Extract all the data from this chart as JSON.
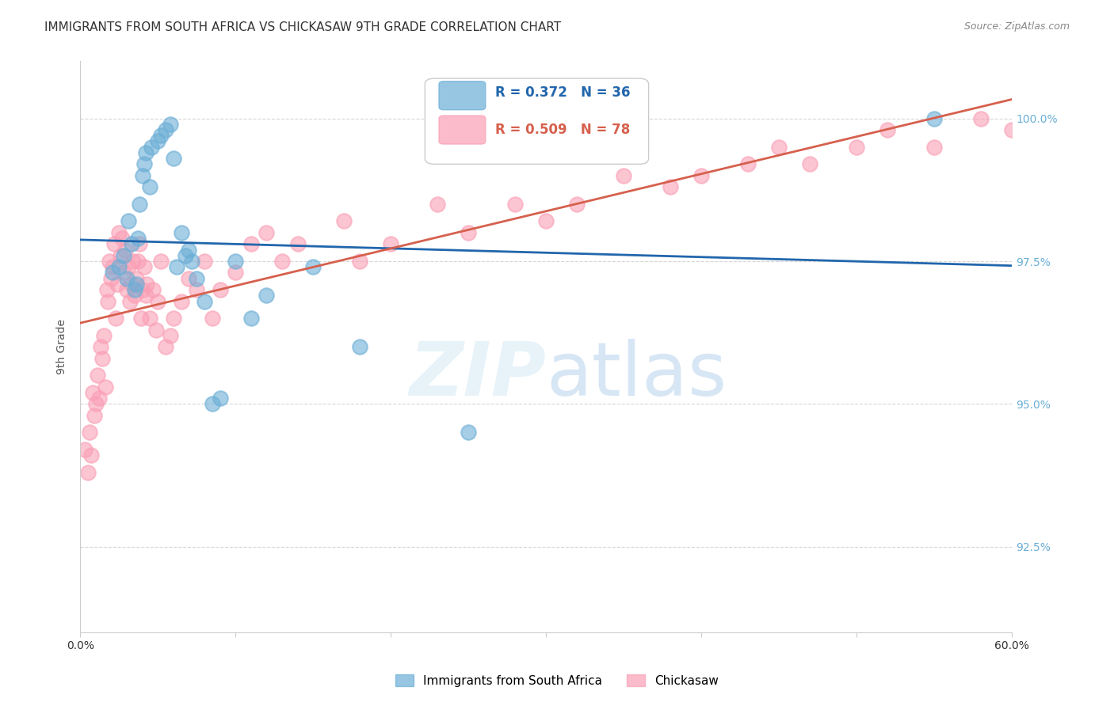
{
  "title": "IMMIGRANTS FROM SOUTH AFRICA VS CHICKASAW 9TH GRADE CORRELATION CHART",
  "source": "Source: ZipAtlas.com",
  "xlabel": "",
  "ylabel": "9th Grade",
  "x_label_bottom_left": "0.0%",
  "x_label_bottom_right": "60.0%",
  "y_tick_labels": [
    "92.5%",
    "95.0%",
    "97.5%",
    "100.0%"
  ],
  "y_tick_values": [
    92.5,
    95.0,
    97.5,
    100.0
  ],
  "xlim": [
    0.0,
    60.0
  ],
  "ylim": [
    91.0,
    101.0
  ],
  "legend_r1": "R = 0.372",
  "legend_n1": "N = 36",
  "legend_r2": "R = 0.509",
  "legend_n2": "N = 78",
  "blue_color": "#6baed6",
  "pink_color": "#fa9fb5",
  "blue_line_color": "#2166ac",
  "pink_line_color": "#d6604d",
  "right_axis_color": "#6baed6",
  "background_color": "#ffffff",
  "watermark": "ZIPatlas",
  "blue_scatter_x": [
    2.1,
    2.5,
    2.8,
    3.0,
    3.1,
    3.3,
    3.5,
    3.6,
    3.7,
    3.8,
    4.0,
    4.1,
    4.2,
    4.5,
    4.6,
    5.0,
    5.2,
    5.5,
    5.8,
    6.0,
    6.2,
    6.5,
    6.8,
    7.0,
    7.2,
    7.5,
    8.0,
    8.5,
    9.0,
    10.0,
    11.0,
    12.0,
    15.0,
    18.0,
    25.0,
    55.0
  ],
  "blue_scatter_y": [
    97.3,
    97.4,
    97.6,
    97.2,
    98.2,
    97.8,
    97.0,
    97.1,
    97.9,
    98.5,
    99.0,
    99.2,
    99.4,
    98.8,
    99.5,
    99.6,
    99.7,
    99.8,
    99.9,
    99.3,
    97.4,
    98.0,
    97.6,
    97.7,
    97.5,
    97.2,
    96.8,
    95.0,
    95.1,
    97.5,
    96.5,
    96.9,
    97.4,
    96.0,
    94.5,
    100.0
  ],
  "pink_scatter_x": [
    0.3,
    0.5,
    0.6,
    0.7,
    0.8,
    0.9,
    1.0,
    1.1,
    1.2,
    1.3,
    1.4,
    1.5,
    1.6,
    1.7,
    1.8,
    1.9,
    2.0,
    2.1,
    2.2,
    2.3,
    2.4,
    2.5,
    2.6,
    2.7,
    2.8,
    2.9,
    3.0,
    3.1,
    3.2,
    3.3,
    3.4,
    3.5,
    3.6,
    3.7,
    3.8,
    3.9,
    4.0,
    4.1,
    4.2,
    4.3,
    4.5,
    4.7,
    4.9,
    5.0,
    5.2,
    5.5,
    5.8,
    6.0,
    6.5,
    7.0,
    7.5,
    8.0,
    8.5,
    9.0,
    10.0,
    11.0,
    12.0,
    13.0,
    14.0,
    17.0,
    18.0,
    20.0,
    23.0,
    25.0,
    28.0,
    30.0,
    32.0,
    35.0,
    38.0,
    40.0,
    43.0,
    45.0,
    47.0,
    50.0,
    52.0,
    55.0,
    58.0,
    60.0
  ],
  "pink_scatter_y": [
    94.2,
    93.8,
    94.5,
    94.1,
    95.2,
    94.8,
    95.0,
    95.5,
    95.1,
    96.0,
    95.8,
    96.2,
    95.3,
    97.0,
    96.8,
    97.5,
    97.2,
    97.4,
    97.8,
    96.5,
    97.1,
    98.0,
    97.6,
    97.9,
    97.3,
    97.7,
    97.0,
    97.4,
    96.8,
    97.1,
    97.5,
    96.9,
    97.2,
    97.5,
    97.8,
    96.5,
    97.0,
    97.4,
    96.9,
    97.1,
    96.5,
    97.0,
    96.3,
    96.8,
    97.5,
    96.0,
    96.2,
    96.5,
    96.8,
    97.2,
    97.0,
    97.5,
    96.5,
    97.0,
    97.3,
    97.8,
    98.0,
    97.5,
    97.8,
    98.2,
    97.5,
    97.8,
    98.5,
    98.0,
    98.5,
    98.2,
    98.5,
    99.0,
    98.8,
    99.0,
    99.2,
    99.5,
    99.2,
    99.5,
    99.8,
    99.5,
    100.0,
    99.8
  ],
  "grid_color": "#cccccc",
  "title_fontsize": 11,
  "axis_label_fontsize": 10,
  "tick_fontsize": 10,
  "legend_fontsize": 12
}
